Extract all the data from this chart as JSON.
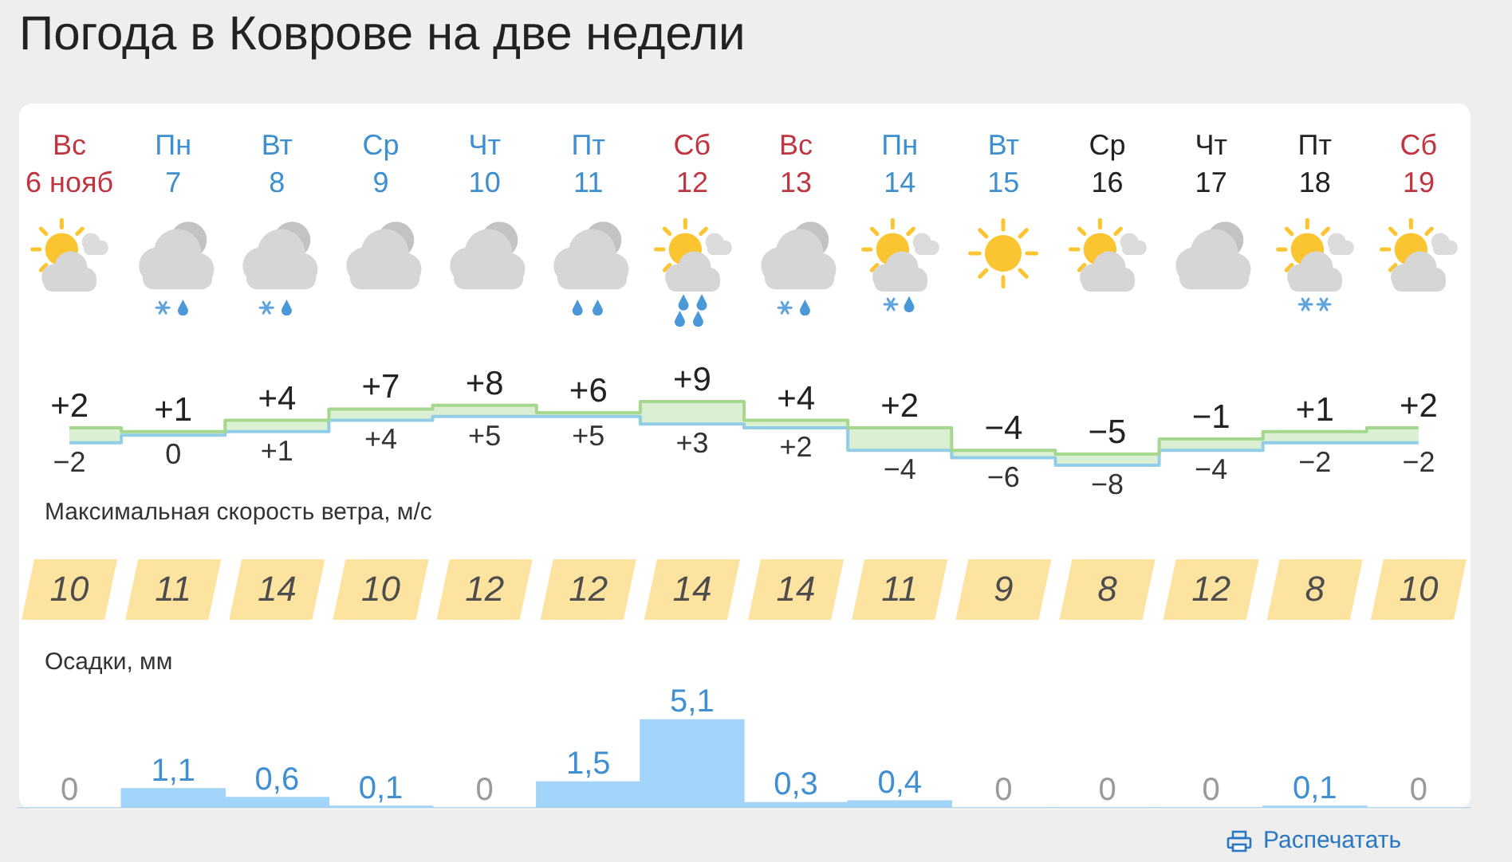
{
  "chart_data": [
    {
      "type": "step",
      "title": "Погода в Коврове на две недели",
      "categories": [
        "Вс\n6 нояб",
        "Пн\n7",
        "Вт\n8",
        "Ср\n9",
        "Чт\n10",
        "Пт\n11",
        "Сб\n12",
        "Вс\n13",
        "Пн\n14",
        "Вт\n15",
        "Ср\n16",
        "Чт\n17",
        "Пт\n18",
        "Сб\n19"
      ],
      "series": [
        {
          "values": [
            2,
            1,
            4,
            7,
            8,
            6,
            9,
            4,
            2,
            -4,
            -5,
            -1,
            1,
            2
          ],
          "value_labels": [
            "+2",
            "+1",
            "+4",
            "+7",
            "+8",
            "+6",
            "+9",
            "+4",
            "+2",
            "−4",
            "−5",
            "−1",
            "+1",
            "+2"
          ],
          "color": "#a5d78e",
          "lower": [
            -2,
            0,
            1,
            4,
            5,
            5,
            3,
            2,
            -4,
            -6,
            -8,
            -4,
            -2,
            -2
          ],
          "upper": [
            2,
            1,
            4,
            7,
            8,
            6,
            9,
            4,
            2,
            -4,
            -5,
            -1,
            1,
            2
          ]
        },
        {
          "values": [
            -2,
            0,
            1,
            4,
            5,
            5,
            3,
            2,
            -4,
            -6,
            -8,
            -4,
            -2,
            -2
          ],
          "value_labels": [
            "−2",
            "0",
            "+1",
            "+4",
            "+5",
            "+5",
            "+3",
            "+2",
            "−4",
            "−6",
            "−8",
            "−4",
            "−2",
            "−2"
          ],
          "color": "#92cde8"
        }
      ],
      "tick_labels": "x"
    },
    {
      "type": "other",
      "title": "Максимальная скорость ветра, м/с",
      "values": [
        10,
        11,
        14,
        10,
        12,
        12,
        14,
        14,
        11,
        9,
        8,
        12,
        8,
        10
      ],
      "color": "#fde3a0",
      "data_labels": true
    },
    {
      "type": "bar",
      "title": "Осадки, мм",
      "categories": [
        null,
        null,
        null,
        null,
        null,
        null,
        null,
        null,
        null,
        null,
        null,
        null,
        null,
        null
      ],
      "values": [
        0,
        1.1,
        0.6,
        0.1,
        0,
        1.5,
        5.1,
        0.3,
        0.4,
        0,
        0,
        0,
        0.1,
        0
      ],
      "value_labels": [
        "0",
        "1,1",
        "0,6",
        "0,1",
        "0",
        "1,5",
        "5,1",
        "0,3",
        "0,4",
        "0",
        "0",
        "0",
        "0,1",
        "0"
      ],
      "color": "#a2d3f8",
      "tick_labels": false,
      "annotations": [
        "Распечатать"
      ]
    }
  ]
}
